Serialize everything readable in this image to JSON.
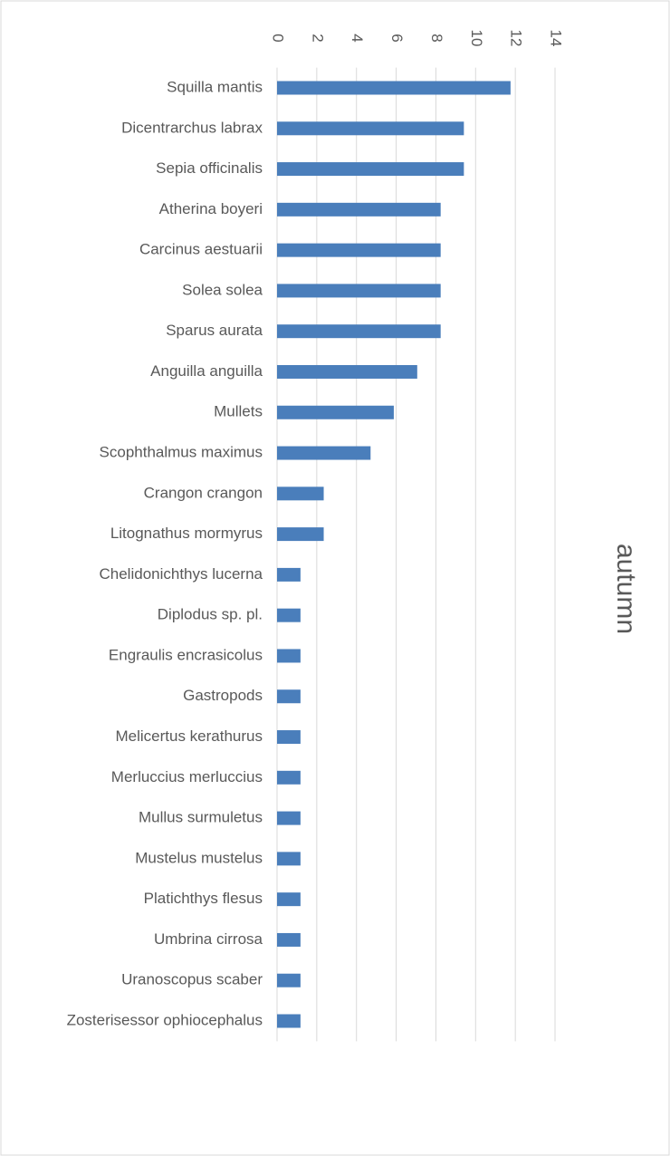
{
  "chart_data": {
    "type": "bar",
    "orientation": "horizontal",
    "x_label": "autumn",
    "categories": [
      "Squilla mantis",
      "Dicentrarchus labrax",
      "Sepia officinalis",
      "Atherina boyeri",
      "Carcinus aestuarii",
      "Solea solea",
      "Sparus aurata",
      "Anguilla anguilla",
      "Mullets",
      "Scophthalmus maximus",
      "Crangon crangon",
      "Litognathus mormyrus",
      "Chelidonichthys lucerna",
      "Diplodus sp. pl.",
      "Engraulis encrasicolus",
      "Gastropods",
      "Melicertus kerathurus",
      "Merluccius merluccius",
      "Mullus surmuletus",
      "Mustelus mustelus",
      "Platichthys flesus",
      "Umbrina cirrosa",
      "Uranoscopus scaber",
      "Zosterisessor ophiocephalus"
    ],
    "values": [
      11.76,
      9.41,
      9.41,
      8.24,
      8.24,
      8.24,
      8.24,
      7.06,
      5.88,
      4.71,
      2.35,
      2.35,
      1.18,
      1.18,
      1.18,
      1.18,
      1.18,
      1.18,
      1.18,
      1.18,
      1.18,
      1.18,
      1.18,
      1.18
    ],
    "color": "#4a7ebb",
    "xlim": [
      0,
      14
    ],
    "xticks": [
      0,
      2,
      4,
      6,
      8,
      10,
      12,
      14
    ],
    "grid": true
  }
}
